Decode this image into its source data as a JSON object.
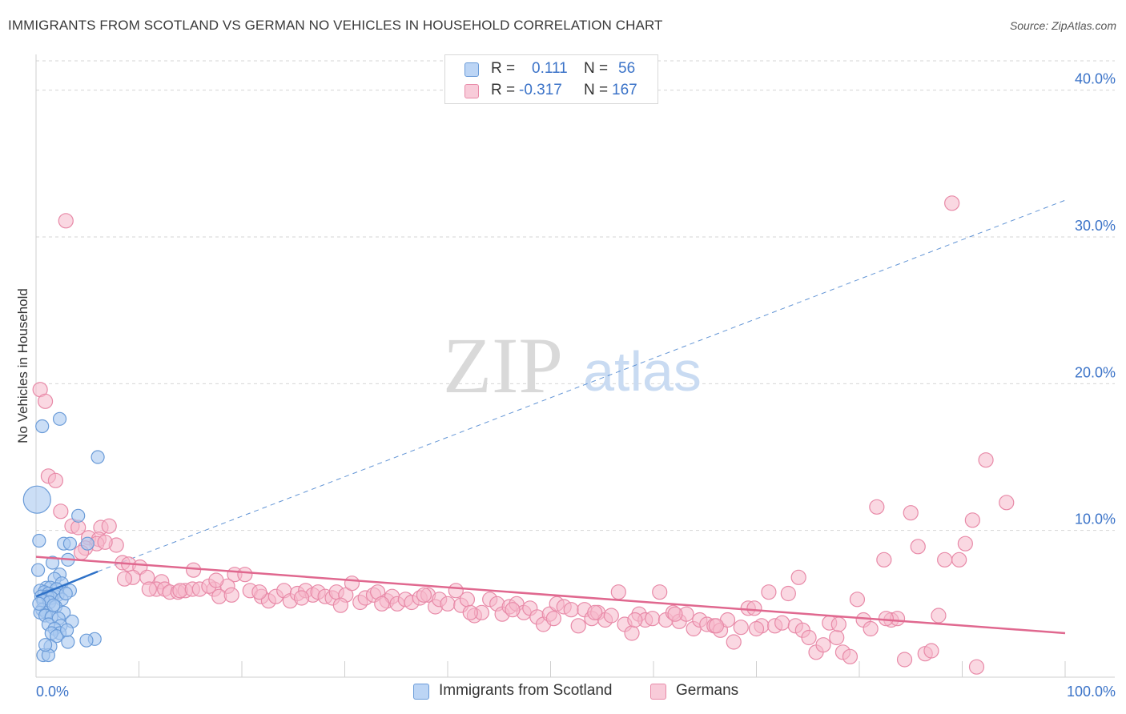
{
  "title": "IMMIGRANTS FROM SCOTLAND VS GERMAN NO VEHICLES IN HOUSEHOLD CORRELATION CHART",
  "source": "Source: ZipAtlas.com",
  "watermark": {
    "zip": "ZIP",
    "atlas": "atlas"
  },
  "legend": {
    "rows": [
      {
        "r_label": "R =",
        "r_value": "0.111",
        "n_label": "N =",
        "n_value": "56"
      },
      {
        "r_label": "R =",
        "r_value": "-0.317",
        "n_label": "N =",
        "n_value": "167"
      }
    ]
  },
  "bottom_legend": [
    "Immigrants from Scotland",
    "Germans"
  ],
  "colors": {
    "blue_fill": "#a9c8f0",
    "blue_stroke": "#6a9bd8",
    "blue_line": "#2f72c8",
    "pink_fill": "#f5b8cb",
    "pink_stroke": "#e88aa8",
    "pink_line": "#e0688f",
    "tick_label": "#3b73c8",
    "grid": "#d5d5d5"
  },
  "chart_data": {
    "type": "scatter",
    "title": "IMMIGRANTS FROM SCOTLAND VS GERMAN NO VEHICLES IN HOUSEHOLD CORRELATION CHART",
    "xlabel": "",
    "ylabel": "No Vehicles in Household",
    "xlim": [
      0,
      100
    ],
    "ylim": [
      0,
      42
    ],
    "x_tick_labels": [
      "0.0%",
      "100.0%"
    ],
    "y_ticks": [
      10,
      20,
      30,
      40
    ],
    "y_tick_labels": [
      "10.0%",
      "20.0%",
      "30.0%",
      "40.0%"
    ],
    "grid": "horizontal dashed",
    "series": [
      {
        "name": "Immigrants from Scotland",
        "r": 0.111,
        "n": 56,
        "trend": {
          "x": [
            0,
            6
          ],
          "y": [
            5.5,
            7.2
          ]
        },
        "trend_extended": {
          "x": [
            6,
            100
          ],
          "y": [
            7.2,
            32.5
          ]
        },
        "points": [
          [
            0.1,
            12.1
          ],
          [
            0.3,
            9.3
          ],
          [
            0.2,
            7.3
          ],
          [
            0.6,
            17.1
          ],
          [
            2.3,
            17.6
          ],
          [
            6.0,
            15.0
          ],
          [
            4.1,
            11.0
          ],
          [
            2.7,
            9.1
          ],
          [
            3.3,
            9.1
          ],
          [
            5.0,
            9.1
          ],
          [
            3.1,
            8.0
          ],
          [
            1.6,
            7.8
          ],
          [
            2.3,
            7.0
          ],
          [
            1.8,
            6.7
          ],
          [
            2.5,
            6.4
          ],
          [
            1.0,
            6.1
          ],
          [
            1.4,
            6.1
          ],
          [
            2.0,
            6.0
          ],
          [
            3.3,
            5.9
          ],
          [
            0.4,
            5.9
          ],
          [
            0.8,
            5.8
          ],
          [
            1.2,
            5.7
          ],
          [
            1.7,
            5.6
          ],
          [
            2.1,
            5.6
          ],
          [
            0.5,
            5.5
          ],
          [
            1.1,
            5.5
          ],
          [
            1.5,
            5.4
          ],
          [
            2.5,
            5.3
          ],
          [
            0.7,
            5.2
          ],
          [
            1.3,
            5.1
          ],
          [
            1.9,
            4.8
          ],
          [
            0.6,
            4.6
          ],
          [
            1.0,
            4.4
          ],
          [
            2.7,
            4.4
          ],
          [
            0.4,
            4.4
          ],
          [
            0.9,
            4.2
          ],
          [
            1.5,
            4.1
          ],
          [
            2.2,
            4.0
          ],
          [
            3.5,
            3.8
          ],
          [
            1.2,
            3.6
          ],
          [
            2.4,
            3.5
          ],
          [
            1.8,
            3.3
          ],
          [
            2.3,
            3.0
          ],
          [
            1.5,
            3.0
          ],
          [
            2.0,
            2.8
          ],
          [
            5.7,
            2.6
          ],
          [
            4.9,
            2.5
          ],
          [
            3.1,
            2.4
          ],
          [
            1.4,
            2.1
          ],
          [
            0.7,
            1.5
          ],
          [
            1.2,
            1.5
          ],
          [
            0.9,
            2.2
          ],
          [
            3.0,
            3.2
          ],
          [
            1.7,
            4.9
          ],
          [
            2.9,
            5.7
          ],
          [
            0.3,
            5.0
          ]
        ]
      },
      {
        "name": "Germans",
        "r": -0.317,
        "n": 167,
        "trend": {
          "x": [
            0,
            100
          ],
          "y": [
            8.2,
            3.0
          ]
        },
        "points": [
          [
            2.9,
            31.1
          ],
          [
            0.4,
            19.6
          ],
          [
            0.9,
            18.8
          ],
          [
            1.2,
            13.7
          ],
          [
            1.9,
            13.4
          ],
          [
            2.4,
            11.3
          ],
          [
            3.5,
            10.3
          ],
          [
            4.1,
            10.2
          ],
          [
            6.3,
            10.2
          ],
          [
            7.1,
            10.3
          ],
          [
            5.1,
            9.5
          ],
          [
            6.1,
            9.4
          ],
          [
            5.9,
            9.1
          ],
          [
            7.8,
            9.0
          ],
          [
            4.8,
            8.8
          ],
          [
            4.4,
            8.5
          ],
          [
            8.4,
            7.8
          ],
          [
            9.0,
            7.7
          ],
          [
            10.1,
            7.5
          ],
          [
            15.3,
            7.3
          ],
          [
            19.3,
            7.0
          ],
          [
            20.3,
            7.0
          ],
          [
            9.4,
            6.8
          ],
          [
            10.8,
            6.8
          ],
          [
            12.2,
            6.5
          ],
          [
            11.7,
            6.0
          ],
          [
            12.5,
            6.0
          ],
          [
            13.0,
            5.8
          ],
          [
            13.8,
            5.8
          ],
          [
            14.5,
            5.9
          ],
          [
            14.0,
            5.9
          ],
          [
            15.2,
            6.0
          ],
          [
            15.9,
            6.0
          ],
          [
            17.3,
            6.0
          ],
          [
            16.8,
            6.2
          ],
          [
            18.6,
            6.2
          ],
          [
            17.8,
            5.5
          ],
          [
            19.0,
            5.6
          ],
          [
            20.8,
            5.9
          ],
          [
            21.9,
            5.5
          ],
          [
            22.6,
            5.2
          ],
          [
            23.3,
            5.5
          ],
          [
            24.1,
            5.9
          ],
          [
            24.7,
            5.2
          ],
          [
            25.4,
            5.7
          ],
          [
            26.2,
            5.9
          ],
          [
            26.9,
            5.6
          ],
          [
            27.4,
            5.8
          ],
          [
            28.1,
            5.5
          ],
          [
            28.8,
            5.4
          ],
          [
            29.2,
            5.8
          ],
          [
            30.1,
            5.6
          ],
          [
            30.7,
            6.4
          ],
          [
            31.5,
            5.1
          ],
          [
            32.0,
            5.4
          ],
          [
            32.8,
            5.6
          ],
          [
            33.2,
            5.8
          ],
          [
            34.1,
            5.2
          ],
          [
            34.6,
            5.5
          ],
          [
            35.1,
            5.0
          ],
          [
            35.9,
            5.3
          ],
          [
            36.5,
            5.1
          ],
          [
            37.3,
            5.4
          ],
          [
            38.1,
            5.6
          ],
          [
            38.8,
            4.8
          ],
          [
            39.2,
            5.3
          ],
          [
            40.0,
            5.0
          ],
          [
            40.8,
            5.9
          ],
          [
            41.3,
            4.9
          ],
          [
            41.9,
            5.3
          ],
          [
            42.6,
            4.2
          ],
          [
            43.3,
            4.4
          ],
          [
            44.1,
            5.3
          ],
          [
            44.8,
            5.0
          ],
          [
            45.3,
            4.3
          ],
          [
            46.0,
            4.8
          ],
          [
            46.7,
            5.0
          ],
          [
            47.4,
            4.4
          ],
          [
            48.0,
            4.7
          ],
          [
            48.7,
            4.1
          ],
          [
            49.3,
            3.6
          ],
          [
            49.9,
            4.3
          ],
          [
            50.6,
            5.0
          ],
          [
            51.3,
            4.8
          ],
          [
            52.0,
            4.6
          ],
          [
            52.7,
            3.5
          ],
          [
            53.3,
            4.6
          ],
          [
            54.0,
            4.0
          ],
          [
            54.6,
            4.4
          ],
          [
            55.3,
            3.9
          ],
          [
            55.9,
            4.2
          ],
          [
            56.6,
            5.8
          ],
          [
            57.2,
            3.6
          ],
          [
            57.9,
            3.0
          ],
          [
            58.6,
            4.3
          ],
          [
            59.2,
            3.9
          ],
          [
            59.9,
            4.0
          ],
          [
            60.6,
            5.8
          ],
          [
            61.2,
            3.9
          ],
          [
            61.9,
            4.4
          ],
          [
            62.5,
            3.8
          ],
          [
            63.2,
            4.3
          ],
          [
            63.9,
            3.3
          ],
          [
            64.5,
            3.9
          ],
          [
            65.2,
            3.6
          ],
          [
            65.9,
            3.5
          ],
          [
            66.5,
            3.2
          ],
          [
            67.2,
            3.9
          ],
          [
            67.8,
            2.4
          ],
          [
            68.5,
            3.4
          ],
          [
            69.2,
            4.7
          ],
          [
            69.8,
            4.7
          ],
          [
            70.5,
            3.5
          ],
          [
            71.2,
            5.8
          ],
          [
            71.8,
            3.5
          ],
          [
            72.5,
            3.7
          ],
          [
            73.1,
            5.7
          ],
          [
            73.8,
            3.5
          ],
          [
            74.5,
            3.2
          ],
          [
            75.1,
            2.7
          ],
          [
            75.8,
            1.7
          ],
          [
            76.5,
            2.2
          ],
          [
            77.1,
            3.7
          ],
          [
            77.8,
            2.7
          ],
          [
            78.4,
            1.7
          ],
          [
            79.1,
            1.4
          ],
          [
            79.8,
            5.3
          ],
          [
            80.4,
            3.9
          ],
          [
            81.1,
            3.3
          ],
          [
            81.7,
            11.6
          ],
          [
            82.4,
            8.0
          ],
          [
            83.1,
            3.9
          ],
          [
            83.7,
            4.0
          ],
          [
            84.4,
            1.2
          ],
          [
            85.0,
            11.2
          ],
          [
            85.7,
            8.9
          ],
          [
            86.4,
            1.6
          ],
          [
            87.0,
            1.8
          ],
          [
            87.7,
            4.2
          ],
          [
            88.3,
            8.0
          ],
          [
            89.0,
            32.3
          ],
          [
            89.7,
            8.0
          ],
          [
            90.3,
            9.1
          ],
          [
            91.0,
            10.7
          ],
          [
            91.4,
            0.7
          ],
          [
            92.3,
            14.8
          ],
          [
            94.3,
            11.9
          ],
          [
            82.6,
            4.0
          ],
          [
            17.5,
            6.6
          ],
          [
            21.7,
            5.8
          ],
          [
            25.8,
            5.4
          ],
          [
            29.6,
            4.9
          ],
          [
            33.6,
            5.0
          ],
          [
            37.7,
            5.6
          ],
          [
            42.2,
            4.4
          ],
          [
            46.3,
            4.6
          ],
          [
            50.3,
            4.0
          ],
          [
            54.3,
            4.4
          ],
          [
            58.2,
            3.9
          ],
          [
            62.1,
            4.3
          ],
          [
            66.1,
            3.5
          ],
          [
            70.0,
            3.3
          ],
          [
            74.1,
            6.8
          ],
          [
            78.0,
            3.6
          ],
          [
            6.7,
            9.2
          ],
          [
            8.6,
            6.7
          ],
          [
            11.0,
            6.0
          ]
        ]
      }
    ]
  }
}
